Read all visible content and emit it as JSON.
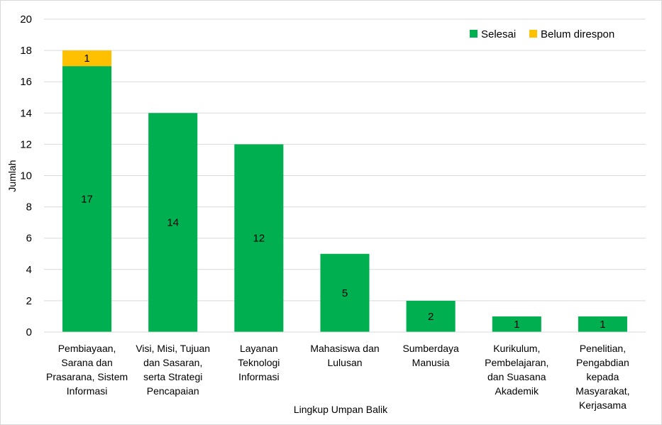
{
  "chart_data": {
    "type": "bar",
    "stacked": true,
    "categories": [
      [
        "Pembiayaan,",
        "Sarana dan",
        "Prasarana, Sistem",
        "Informasi"
      ],
      [
        "Visi, Misi, Tujuan",
        "dan Sasaran,",
        "serta Strategi",
        "Pencapaian"
      ],
      [
        "Layanan",
        "Teknologi",
        "Informasi"
      ],
      [
        "Mahasiswa dan",
        "Lulusan"
      ],
      [
        "Sumberdaya",
        "Manusia"
      ],
      [
        "Kurikulum,",
        "Pembelajaran,",
        "dan Suasana",
        "Akademik"
      ],
      [
        "Penelitian,",
        "Pengabdian",
        "kepada",
        "Masyarakat,",
        "Kerjasama"
      ]
    ],
    "series": [
      {
        "name": "Selesai",
        "color": "#00B050",
        "values": [
          17,
          14,
          12,
          5,
          2,
          1,
          1
        ]
      },
      {
        "name": "Belum direspon",
        "color": "#FFC000",
        "values": [
          1,
          0,
          0,
          0,
          0,
          0,
          0
        ]
      }
    ],
    "data_labels": [
      [
        "17",
        "14",
        "12",
        "5",
        "2",
        "1",
        "1"
      ],
      [
        "1",
        "",
        "",
        "",
        "",
        "",
        ""
      ]
    ],
    "xlabel": "Lingkup Umpan Balik",
    "ylabel": "Jumlah",
    "ylim": [
      0,
      20
    ],
    "yticks": [
      0,
      2,
      4,
      6,
      8,
      10,
      12,
      14,
      16,
      18,
      20
    ],
    "grid": true,
    "legend_position": "top-right",
    "gridline_color": "#d9d9d9"
  }
}
